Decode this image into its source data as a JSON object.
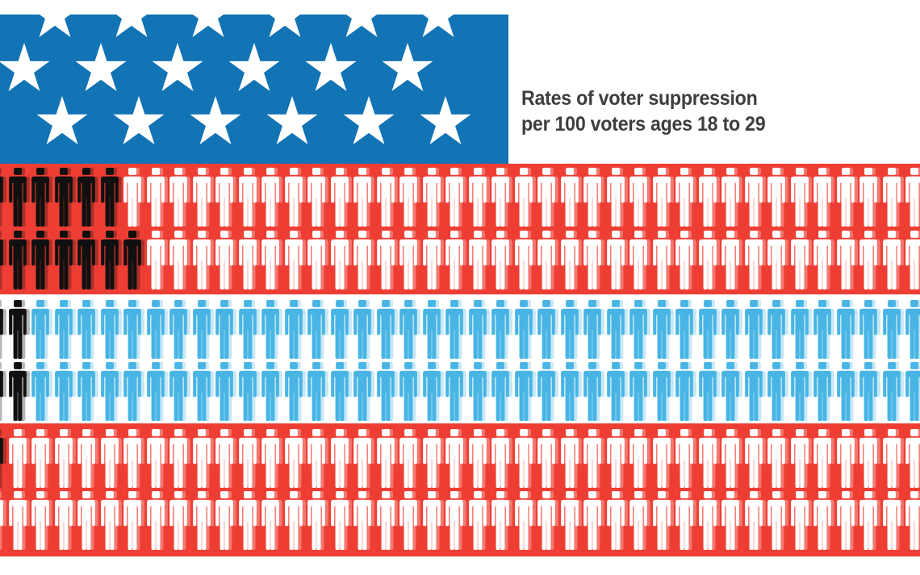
{
  "title": {
    "line1": "Rates of voter suppression",
    "line2": "per 100 voters ages 18 to 29"
  },
  "colors": {
    "flag_red": "#ee3e33",
    "canton_blue": "#1273b5",
    "icon_blue": "#48b5e4",
    "icon_white": "#ffffff",
    "suppressed_black": "#101010",
    "star_white": "#ffffff",
    "text_gray": "#3d3d3d",
    "background_white": "#ffffff"
  },
  "chart_data": {
    "type": "pictograph",
    "title": "Rates of voter suppression per 100 voters ages 18 to 29",
    "icon_unit": "1 figure = 1 voter (out of 100); black figures = suppressed voters",
    "columns_visible": 41,
    "rows_per_band": 2,
    "bands": [
      {
        "name": "top-red-band",
        "background": "flag_red",
        "icon_color": "icon_white",
        "rows": [
          {
            "edge_partial_black": true,
            "black_icons": 5,
            "partial_black_pct": 42
          },
          {
            "edge_partial_black": true,
            "black_icons": 6,
            "partial_black_pct": 0
          }
        ],
        "suppressed_icons_visible": "≈ 12"
      },
      {
        "name": "middle-white-band",
        "background": "background_white",
        "icon_color": "icon_blue",
        "rows": [
          {
            "edge_partial_black": true,
            "black_icons": 1,
            "partial_black_pct": 22
          },
          {
            "edge_partial_black": true,
            "black_icons": 1,
            "partial_black_pct": 0
          }
        ],
        "suppressed_icons_visible": "≈ 2.5"
      },
      {
        "name": "bottom-red-band",
        "background": "flag_red",
        "icon_color": "icon_white",
        "rows": [
          {
            "edge_partial_black": true,
            "black_icons": 0,
            "partial_black_pct": 0
          },
          {
            "edge_partial_black": false,
            "black_icons": 0,
            "partial_black_pct": 0
          }
        ],
        "suppressed_icons_visible": "< 1"
      }
    ]
  }
}
